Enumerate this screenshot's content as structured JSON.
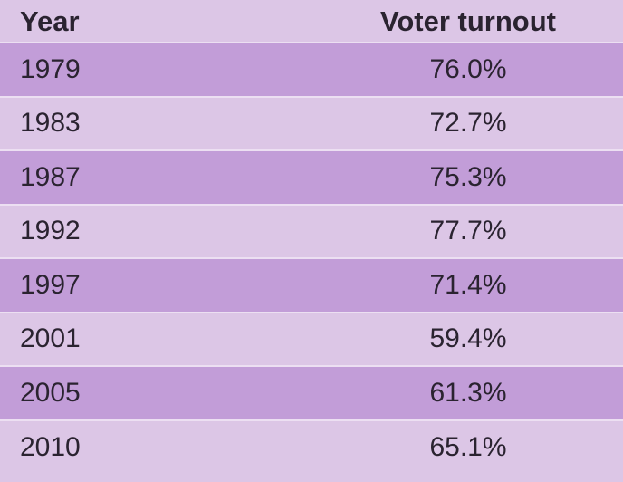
{
  "table": {
    "headers": {
      "year": "Year",
      "turnout": "Voter turnout"
    },
    "rows": [
      {
        "year": "1979",
        "turnout": "76.0%"
      },
      {
        "year": "1983",
        "turnout": "72.7%"
      },
      {
        "year": "1987",
        "turnout": "75.3%"
      },
      {
        "year": "1992",
        "turnout": "77.7%"
      },
      {
        "year": "1997",
        "turnout": "71.4%"
      },
      {
        "year": "2001",
        "turnout": "59.4%"
      },
      {
        "year": "2005",
        "turnout": "61.3%"
      },
      {
        "year": "2010",
        "turnout": "65.1%"
      }
    ]
  },
  "colors": {
    "row_dark": "#c29dd8",
    "row_light": "#dcc6e6",
    "text": "#2a2330"
  }
}
